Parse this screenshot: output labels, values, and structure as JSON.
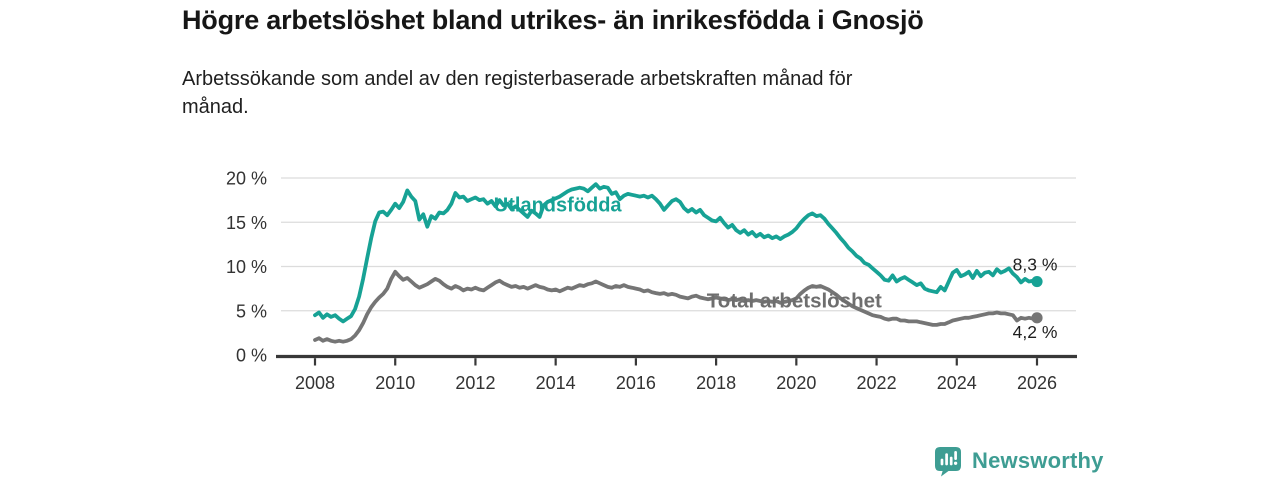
{
  "header": {
    "title": "Högre arbetslöshet bland utrikes- än inrikesfödda i Gnosjö",
    "subtitle": "Arbetssökande som andel av den registerbaserade arbetskraften månad för månad."
  },
  "branding": {
    "name": "Newsworthy",
    "color": "#3e9d93",
    "icon": "bar-chart-speech-bubble-icon"
  },
  "chart_data": {
    "type": "line",
    "title": "Högre arbetslöshet bland utrikes- än inrikesfödda i Gnosjö",
    "xlabel": "",
    "ylabel": "",
    "grid": "horizontal-only",
    "xlim": [
      2008,
      2026
    ],
    "ylim": [
      0,
      20
    ],
    "x_ticks": [
      2008,
      2010,
      2012,
      2014,
      2016,
      2018,
      2020,
      2022,
      2024,
      2026
    ],
    "x_tick_labels": [
      "2008",
      "2010",
      "2012",
      "2014",
      "2016",
      "2018",
      "2020",
      "2022",
      "2024",
      "2026"
    ],
    "y_ticks": [
      0,
      5,
      10,
      15,
      20
    ],
    "y_tick_labels": [
      "0 %",
      "5 %",
      "10 %",
      "15 %",
      "20 %"
    ],
    "series": [
      {
        "name": "Utlandsfödda",
        "color": "#17a295",
        "end_label": "8,3 %",
        "end_label_position": "above",
        "end_value": 8.3,
        "x_start": 2008.0,
        "x_step": 0.1,
        "values": [
          4.5,
          4.8,
          4.2,
          4.6,
          4.3,
          4.5,
          4.1,
          3.8,
          4.1,
          4.4,
          5.2,
          6.6,
          8.6,
          10.9,
          13.2,
          15.1,
          16.1,
          16.2,
          15.8,
          16.4,
          17.1,
          16.6,
          17.3,
          18.6,
          17.9,
          17.4,
          15.3,
          15.9,
          14.5,
          15.7,
          15.4,
          16.1,
          16.0,
          16.4,
          17.1,
          18.3,
          17.8,
          17.9,
          17.4,
          17.6,
          17.8,
          17.5,
          17.6,
          17.1,
          17.4,
          16.8,
          17.5,
          16.9,
          17.1,
          16.5,
          16.8,
          16.4,
          16.0,
          15.6,
          16.3,
          16.0,
          15.6,
          16.9,
          17.3,
          17.5,
          17.7,
          17.9,
          18.2,
          18.5,
          18.7,
          18.8,
          18.9,
          18.8,
          18.5,
          18.9,
          19.3,
          18.8,
          19.0,
          18.9,
          18.2,
          18.4,
          17.6,
          18.0,
          18.2,
          18.1,
          18.0,
          17.9,
          18.0,
          17.8,
          18.0,
          17.6,
          17.1,
          16.4,
          16.9,
          17.4,
          17.6,
          17.3,
          16.6,
          16.2,
          16.5,
          16.1,
          16.4,
          15.8,
          15.5,
          15.2,
          15.1,
          15.5,
          14.9,
          14.4,
          14.7,
          14.1,
          13.8,
          14.1,
          13.6,
          13.9,
          13.4,
          13.7,
          13.3,
          13.5,
          13.2,
          13.4,
          13.1,
          13.4,
          13.6,
          13.9,
          14.3,
          14.9,
          15.4,
          15.8,
          16.0,
          15.7,
          15.8,
          15.4,
          14.8,
          14.3,
          13.8,
          13.2,
          12.7,
          12.1,
          11.7,
          11.2,
          10.9,
          10.4,
          10.2,
          9.8,
          9.4,
          9.0,
          8.5,
          8.4,
          9.0,
          8.3,
          8.6,
          8.8,
          8.5,
          8.2,
          7.9,
          8.1,
          7.5,
          7.3,
          7.2,
          7.1,
          7.7,
          7.3,
          8.3,
          9.3,
          9.6,
          8.9,
          9.1,
          9.4,
          8.7,
          9.5,
          8.9,
          9.3,
          9.4,
          9.0,
          9.7,
          9.3,
          9.5,
          9.8,
          9.2,
          8.8,
          8.2,
          8.6,
          8.3,
          8.4,
          8.3
        ]
      },
      {
        "name": "Total arbetslöshet",
        "color": "#757575",
        "end_label": "4,2 %",
        "end_label_position": "below",
        "end_value": 4.2,
        "x_start": 2008.0,
        "x_step": 0.1,
        "values": [
          1.7,
          1.9,
          1.6,
          1.8,
          1.6,
          1.5,
          1.6,
          1.5,
          1.6,
          1.8,
          2.2,
          2.8,
          3.6,
          4.6,
          5.4,
          6.0,
          6.5,
          6.9,
          7.5,
          8.6,
          9.4,
          8.9,
          8.5,
          8.7,
          8.3,
          7.9,
          7.6,
          7.8,
          8.0,
          8.3,
          8.6,
          8.4,
          8.0,
          7.7,
          7.5,
          7.8,
          7.6,
          7.3,
          7.5,
          7.4,
          7.6,
          7.4,
          7.3,
          7.6,
          7.9,
          8.2,
          8.4,
          8.1,
          7.9,
          7.7,
          7.8,
          7.6,
          7.7,
          7.5,
          7.7,
          7.9,
          7.7,
          7.6,
          7.4,
          7.3,
          7.4,
          7.2,
          7.4,
          7.6,
          7.5,
          7.7,
          7.9,
          7.8,
          8.0,
          8.1,
          8.3,
          8.1,
          7.9,
          7.7,
          7.6,
          7.8,
          7.7,
          7.9,
          7.7,
          7.6,
          7.5,
          7.4,
          7.2,
          7.3,
          7.1,
          7.0,
          6.9,
          7.0,
          6.8,
          6.9,
          6.8,
          6.6,
          6.5,
          6.4,
          6.6,
          6.7,
          6.5,
          6.4,
          6.3,
          6.4,
          6.5,
          6.4,
          6.3,
          6.2,
          6.3,
          6.2,
          6.3,
          6.1,
          6.2,
          6.1,
          6.2,
          6.1,
          6.0,
          6.1,
          6.0,
          6.1,
          5.9,
          6.0,
          6.1,
          6.2,
          6.4,
          6.9,
          7.3,
          7.6,
          7.8,
          7.7,
          7.8,
          7.6,
          7.4,
          7.1,
          6.8,
          6.4,
          6.1,
          5.8,
          5.5,
          5.3,
          5.1,
          4.9,
          4.7,
          4.5,
          4.4,
          4.3,
          4.1,
          4.0,
          4.1,
          4.1,
          3.9,
          3.9,
          3.8,
          3.8,
          3.8,
          3.7,
          3.6,
          3.5,
          3.4,
          3.4,
          3.5,
          3.5,
          3.7,
          3.9,
          4.0,
          4.1,
          4.2,
          4.2,
          4.3,
          4.4,
          4.5,
          4.6,
          4.7,
          4.7,
          4.8,
          4.7,
          4.7,
          4.6,
          4.5,
          3.9,
          4.2,
          4.1,
          4.2,
          4.1,
          4.2
        ]
      }
    ],
    "annotations": [
      {
        "text": "Utlandsfödda",
        "x": 2014.05,
        "y": 17.0,
        "color": "#17a295",
        "bold": true,
        "size": 20
      },
      {
        "text": "Total arbetslöshet",
        "x": 2019.95,
        "y": 6.15,
        "color": "#6e6e6e",
        "bold": true,
        "size": 20.5
      }
    ],
    "legend_position": "inline-labels",
    "colors": {
      "gridline": "#dcdcdc",
      "axis": "#383838",
      "tick_label": "#333333",
      "end_label": "#1e1e1e"
    }
  }
}
